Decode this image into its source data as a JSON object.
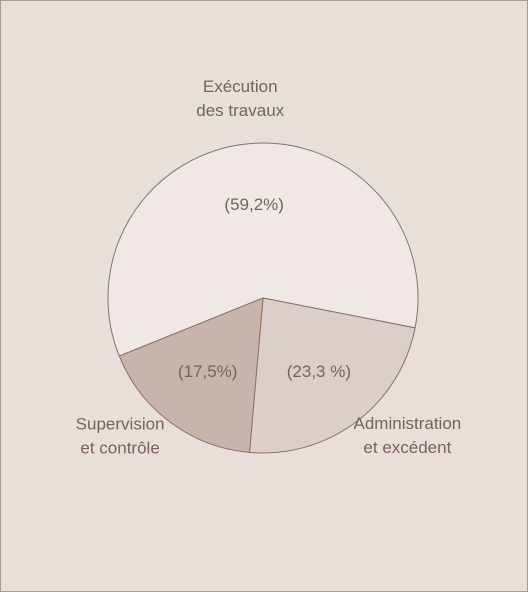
{
  "chart_data": {
    "type": "pie",
    "categories": [
      "Exécution des travaux",
      "Administration et excédent",
      "Supervision et contrôle"
    ],
    "values": [
      59.2,
      23.3,
      17.5
    ],
    "value_labels": [
      "(59,2%)",
      "(23,3 %)",
      "(17,5%)"
    ],
    "colors": [
      "#efe8e4",
      "#dccfca",
      "#c7b4aa"
    ]
  }
}
